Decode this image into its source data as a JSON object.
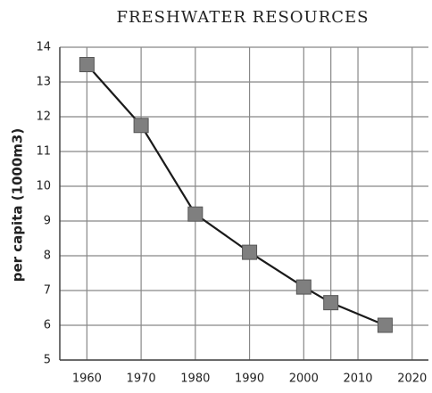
{
  "chart_data": {
    "type": "line",
    "title": "FRESHWATER RESOURCES",
    "y_label": "per capita (1000m3)",
    "x": [
      1960,
      1970,
      1980,
      1990,
      2000,
      2005,
      2015
    ],
    "series": [
      {
        "name": "per capita",
        "color": "#1a1a1a",
        "marker_color": "#7f7f7f",
        "values": [
          13.5,
          11.75,
          9.2,
          8.1,
          7.1,
          6.65,
          6.0
        ]
      }
    ],
    "xlim": [
      1955,
      2023
    ],
    "xticks": [
      1960,
      1970,
      1980,
      1990,
      2000,
      2010,
      2020
    ],
    "minor_xgrid": [
      2005
    ],
    "ylim": [
      5,
      14
    ],
    "yticks": [
      5,
      6,
      7,
      8,
      9,
      10,
      11,
      12,
      13,
      14
    ],
    "grid": true
  }
}
